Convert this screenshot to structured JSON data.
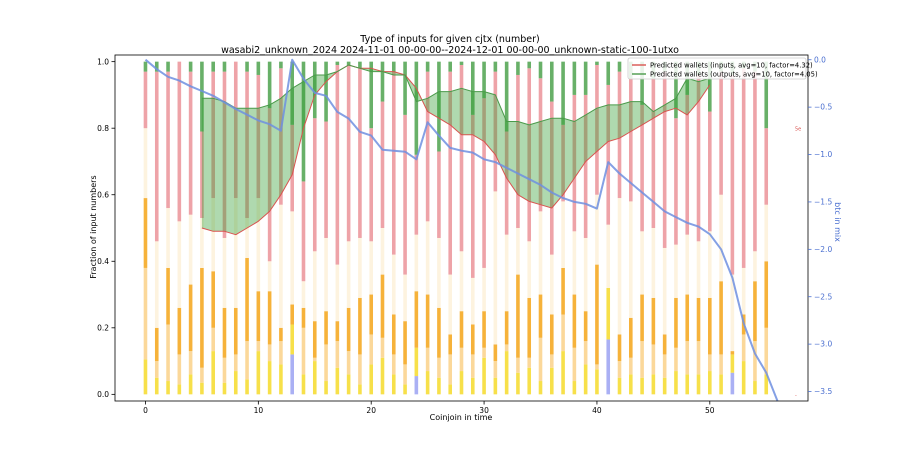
{
  "chart_data": {
    "type": "bar",
    "title": "Type of inputs for given cjtx (number)",
    "subtitle": "wasabi2_unknown_2024 2024-11-01 00-00-00--2024-12-01 00-00-00_unknown-static-100-1utxo",
    "xlabel": "Coinjoin in time",
    "ylabel": "Fraction of input numbers",
    "y2label": "btc in mix",
    "xlim": [
      -2.7,
      58.7
    ],
    "ylim": [
      -0.02,
      1.02
    ],
    "y2lim": [
      -3.6,
      0.05
    ],
    "xticks": [
      0,
      10,
      20,
      30,
      40,
      50
    ],
    "yticks": [
      0.0,
      0.2,
      0.4,
      0.6,
      0.8,
      1.0
    ],
    "y2ticks": [
      0.0,
      -0.5,
      -1.0,
      -1.5,
      -2.0,
      -2.5,
      -3.0,
      -3.5
    ],
    "extra_ticks_right": [
      {
        "value": 0.8,
        "label": "5e"
      },
      {
        "value": 0.0,
        "label": "-"
      }
    ],
    "stack_colors": [
      "#1f1fd6",
      "#aab0f4",
      "#f7e04a",
      "#fbd89a",
      "#f6b23a",
      "#fdf3df",
      "#eea3a8",
      "#68b068"
    ],
    "bar_values": {
      "boundaries": [
        [
          0.0,
          0.0,
          0.105,
          0.38,
          0.59,
          0.8,
          0.97,
          1.0
        ],
        [
          0.0,
          0.0,
          0.05,
          0.1,
          0.2,
          0.46,
          0.97,
          1.0
        ],
        [
          0.0,
          0.0,
          0.04,
          0.21,
          0.38,
          0.56,
          0.97,
          1.0
        ],
        [
          0.0,
          0.0,
          0.03,
          0.12,
          0.26,
          0.52,
          1.0,
          1.0
        ],
        [
          0.0,
          0.0,
          0.06,
          0.13,
          0.33,
          0.54,
          0.97,
          1.0
        ],
        [
          0.0,
          0.0,
          0.035,
          0.08,
          0.38,
          0.53,
          0.79,
          1.0
        ],
        [
          0.0,
          0.0,
          0.13,
          0.2,
          0.37,
          0.59,
          0.97,
          1.0
        ],
        [
          0.0,
          0.0,
          0.035,
          0.11,
          0.26,
          0.47,
          0.97,
          1.0
        ],
        [
          0.0,
          0.0,
          0.07,
          0.12,
          0.26,
          0.59,
          1.0,
          1.0
        ],
        [
          0.0,
          0.0,
          0.045,
          0.16,
          0.41,
          0.53,
          0.97,
          1.0
        ],
        [
          0.0,
          0.0,
          0.13,
          0.16,
          0.31,
          0.59,
          0.96,
          1.0
        ],
        [
          0.0,
          0.0,
          0.1,
          0.15,
          0.31,
          0.4,
          0.86,
          1.0
        ],
        [
          0.0,
          0.0,
          0.09,
          0.16,
          0.2,
          0.57,
          0.98,
          1.0
        ],
        [
          0.0,
          0.12,
          0.21,
          0.21,
          0.27,
          0.55,
          0.81,
          1.0
        ],
        [
          0.0,
          0.0,
          0.06,
          0.2,
          0.26,
          0.34,
          0.64,
          1.0
        ],
        [
          0.0,
          0.0,
          0.1,
          0.11,
          0.22,
          0.43,
          0.83,
          1.0
        ],
        [
          0.0,
          0.0,
          0.04,
          0.15,
          0.25,
          0.47,
          0.82,
          1.0
        ],
        [
          0.0,
          0.0,
          0.08,
          0.16,
          0.22,
          0.39,
          0.99,
          1.0
        ],
        [
          0.0,
          0.0,
          0.06,
          0.13,
          0.26,
          0.46,
          0.99,
          1.0
        ],
        [
          0.0,
          0.0,
          0.03,
          0.12,
          0.29,
          0.47,
          0.98,
          1.0
        ],
        [
          0.0,
          0.0,
          0.09,
          0.18,
          0.3,
          0.46,
          0.8,
          1.0
        ],
        [
          0.0,
          0.0,
          0.11,
          0.17,
          0.36,
          0.5,
          0.88,
          1.0
        ],
        [
          0.0,
          0.0,
          0.06,
          0.12,
          0.24,
          0.42,
          0.97,
          1.0
        ],
        [
          0.0,
          0.0,
          0.03,
          0.09,
          0.22,
          0.36,
          0.84,
          1.0
        ],
        [
          0.0,
          0.055,
          0.14,
          0.14,
          0.31,
          0.48,
          0.72,
          1.0
        ],
        [
          0.0,
          0.0,
          0.07,
          0.14,
          0.3,
          0.52,
          0.97,
          1.0
        ],
        [
          0.0,
          0.0,
          0.05,
          0.11,
          0.26,
          0.47,
          0.73,
          1.0
        ],
        [
          0.0,
          0.0,
          0.03,
          0.12,
          0.18,
          0.36,
          0.97,
          1.0
        ],
        [
          0.0,
          0.0,
          0.07,
          0.14,
          0.25,
          0.43,
          0.99,
          1.0
        ],
        [
          0.0,
          0.0,
          0.05,
          0.12,
          0.21,
          0.35,
          0.84,
          1.0
        ],
        [
          0.0,
          0.0,
          0.11,
          0.14,
          0.25,
          0.38,
          0.89,
          1.0
        ],
        [
          0.0,
          0.0,
          0.05,
          0.1,
          0.15,
          0.61,
          0.97,
          1.0
        ],
        [
          0.0,
          0.0,
          0.13,
          0.15,
          0.25,
          0.48,
          0.79,
          1.0
        ],
        [
          0.0,
          0.0,
          0.065,
          0.11,
          0.36,
          0.5,
          0.96,
          1.0
        ],
        [
          0.0,
          0.0,
          0.08,
          0.11,
          0.29,
          0.46,
          0.98,
          1.0
        ],
        [
          0.0,
          0.0,
          0.04,
          0.17,
          0.3,
          0.55,
          0.95,
          1.0
        ],
        [
          0.0,
          0.0,
          0.08,
          0.12,
          0.24,
          0.42,
          0.88,
          1.0
        ],
        [
          0.0,
          0.0,
          0.13,
          0.24,
          0.38,
          0.58,
          0.81,
          1.0
        ],
        [
          0.0,
          0.0,
          0.04,
          0.14,
          0.3,
          0.49,
          0.9,
          1.0
        ],
        [
          0.0,
          0.0,
          0.09,
          0.16,
          0.25,
          0.47,
          0.9,
          1.0
        ],
        [
          0.0,
          0.0,
          0.075,
          0.09,
          0.39,
          0.6,
          0.99,
          1.0
        ],
        [
          0.0,
          0.165,
          0.32,
          0.32,
          0.32,
          0.51,
          0.93,
          1.0
        ],
        [
          0.0,
          0.0,
          0.05,
          0.1,
          0.18,
          0.59,
          0.97,
          1.0
        ],
        [
          0.0,
          0.0,
          0.06,
          0.11,
          0.23,
          0.58,
          0.95,
          1.0
        ],
        [
          0.0,
          0.0,
          0.05,
          0.16,
          0.3,
          0.49,
          0.87,
          1.0
        ],
        [
          0.0,
          0.0,
          0.06,
          0.15,
          0.29,
          0.5,
          0.95,
          1.0
        ],
        [
          0.0,
          0.0,
          0.05,
          0.12,
          0.18,
          0.44,
          0.97,
          1.0
        ],
        [
          0.0,
          0.0,
          0.07,
          0.14,
          0.29,
          0.45,
          0.83,
          1.0
        ],
        [
          0.0,
          0.0,
          0.06,
          0.16,
          0.3,
          0.48,
          0.9,
          1.0
        ],
        [
          0.0,
          0.0,
          0.06,
          0.16,
          0.29,
          0.46,
          0.96,
          1.0
        ],
        [
          0.0,
          0.0,
          0.07,
          0.12,
          0.29,
          0.49,
          0.85,
          1.0
        ],
        [
          0.0,
          0.0,
          0.06,
          0.12,
          0.34,
          0.6,
          0.97,
          1.0
        ],
        [
          0.0,
          0.065,
          0.12,
          0.12,
          0.13,
          0.36,
          0.96,
          1.0
        ],
        [
          0.0,
          0.0,
          0.1,
          0.18,
          0.24,
          0.38,
          0.98,
          1.0
        ],
        [
          0.0,
          0.0,
          0.04,
          0.16,
          0.34,
          0.43,
          0.97,
          1.0
        ],
        [
          0.0,
          0.0,
          0.06,
          0.2,
          0.4,
          0.57,
          0.8,
          1.0
        ]
      ]
    },
    "series": [
      {
        "name": "Predicted wallets (inputs, avg=10, factor=4.32)",
        "color": "#d9534f",
        "x": [
          5,
          6,
          7,
          8,
          9,
          10,
          11,
          12,
          13,
          14,
          15,
          16,
          17,
          18,
          19,
          20,
          21,
          22,
          23,
          24,
          25,
          26,
          27,
          28,
          29,
          30,
          31,
          32,
          33,
          34,
          35,
          36,
          37,
          38,
          39,
          40,
          41,
          42,
          43,
          44,
          45,
          46,
          47,
          48,
          49,
          50
        ],
        "values": [
          0.5,
          0.49,
          0.49,
          0.48,
          0.5,
          0.52,
          0.55,
          0.6,
          0.66,
          0.8,
          0.9,
          0.94,
          0.97,
          0.99,
          0.98,
          0.98,
          0.97,
          0.97,
          0.96,
          0.92,
          0.85,
          0.83,
          0.81,
          0.78,
          0.78,
          0.76,
          0.72,
          0.65,
          0.6,
          0.58,
          0.57,
          0.56,
          0.6,
          0.65,
          0.7,
          0.73,
          0.76,
          0.77,
          0.79,
          0.81,
          0.83,
          0.85,
          0.86,
          0.84,
          0.88,
          0.93
        ]
      },
      {
        "name": "Predicted wallets (outputs, avg=10, factor=4.05)",
        "color": "#4a9a4a",
        "x": [
          5,
          6,
          7,
          8,
          9,
          10,
          11,
          12,
          13,
          14,
          15,
          16,
          17,
          18,
          19,
          20,
          21,
          22,
          23,
          24,
          25,
          26,
          27,
          28,
          29,
          30,
          31,
          32,
          33,
          34,
          35,
          36,
          37,
          38,
          39,
          40,
          41,
          42,
          43,
          44,
          45,
          46,
          47,
          48,
          49,
          50
        ],
        "values": [
          0.89,
          0.89,
          0.88,
          0.86,
          0.86,
          0.86,
          0.87,
          0.89,
          0.92,
          0.94,
          0.96,
          0.96,
          0.97,
          0.99,
          0.98,
          0.97,
          0.97,
          0.96,
          0.96,
          0.88,
          0.89,
          0.91,
          0.91,
          0.92,
          0.91,
          0.91,
          0.9,
          0.82,
          0.82,
          0.81,
          0.82,
          0.83,
          0.83,
          0.82,
          0.84,
          0.86,
          0.87,
          0.87,
          0.88,
          0.88,
          0.85,
          0.87,
          0.89,
          0.95,
          0.94,
          0.95
        ]
      },
      {
        "name": "btc in mix",
        "color": "#6f8fe0",
        "x": [
          0,
          1,
          2,
          3,
          4,
          5,
          6,
          7,
          8,
          9,
          10,
          11,
          12,
          13,
          14,
          15,
          16,
          17,
          18,
          19,
          20,
          21,
          22,
          23,
          24,
          25,
          26,
          27,
          28,
          29,
          30,
          31,
          32,
          33,
          34,
          35,
          36,
          37,
          38,
          39,
          40,
          41,
          42,
          43,
          44,
          45,
          46,
          47,
          48,
          49,
          50,
          51,
          52,
          53,
          54,
          55,
          56
        ],
        "values": [
          0.0,
          -0.1,
          -0.18,
          -0.22,
          -0.28,
          -0.33,
          -0.38,
          -0.45,
          -0.52,
          -0.58,
          -0.64,
          -0.68,
          -0.75,
          0.0,
          -0.2,
          -0.35,
          -0.38,
          -0.55,
          -0.62,
          -0.76,
          -0.8,
          -0.95,
          -0.96,
          -0.97,
          -1.05,
          -0.66,
          -0.8,
          -0.93,
          -0.96,
          -0.98,
          -1.05,
          -1.08,
          -1.14,
          -1.2,
          -1.26,
          -1.32,
          -1.4,
          -1.46,
          -1.5,
          -1.52,
          -1.57,
          -1.08,
          -1.2,
          -1.3,
          -1.4,
          -1.5,
          -1.6,
          -1.66,
          -1.72,
          -1.76,
          -1.84,
          -2.0,
          -2.3,
          -2.78,
          -3.1,
          -3.3,
          -3.6
        ]
      }
    ],
    "legend_position": "top-right",
    "grid": false
  }
}
